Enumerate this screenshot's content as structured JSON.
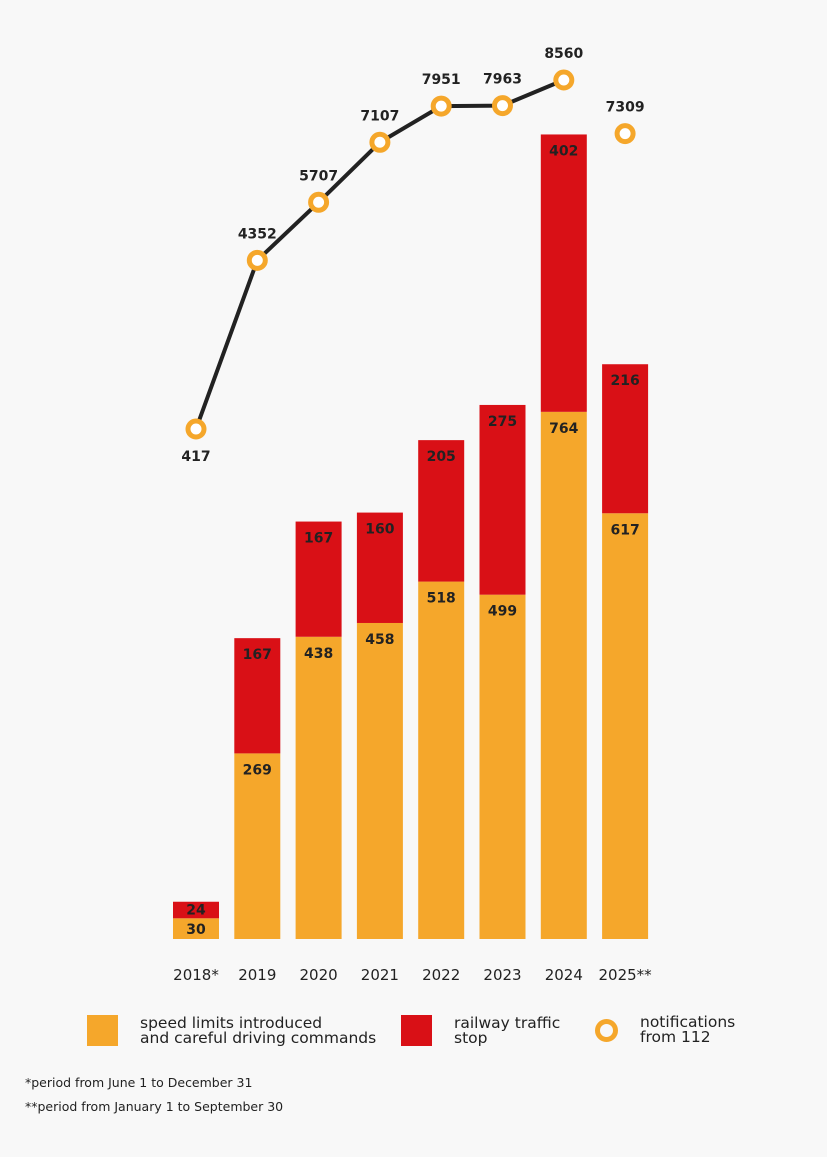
{
  "chart_data": {
    "type": "bar+line",
    "categories": [
      "2018*",
      "2019",
      "2020",
      "2021",
      "2022",
      "2023",
      "2024",
      "2025**"
    ],
    "series": [
      {
        "name": "speed limits introduced\nand careful driving commands",
        "kind": "stacked-bar",
        "color": "#f5a72b",
        "values": [
          30,
          269,
          438,
          458,
          518,
          499,
          764,
          617
        ]
      },
      {
        "name": "railway traffic\nstop",
        "kind": "stacked-bar",
        "color": "#d91016",
        "values": [
          24,
          167,
          167,
          160,
          205,
          275,
          402,
          216
        ]
      },
      {
        "name": "notifications\nfrom 112",
        "kind": "line",
        "color": "#f5a72b",
        "line_color": "#222222",
        "values": [
          417,
          4352,
          5707,
          7107,
          7951,
          7963,
          8560,
          7309
        ],
        "connected_through": "2024"
      }
    ],
    "grid": false,
    "legend": "bottom",
    "footnotes": [
      "*period from June 1 to December 31",
      "**period from January 1 to September 30"
    ]
  }
}
